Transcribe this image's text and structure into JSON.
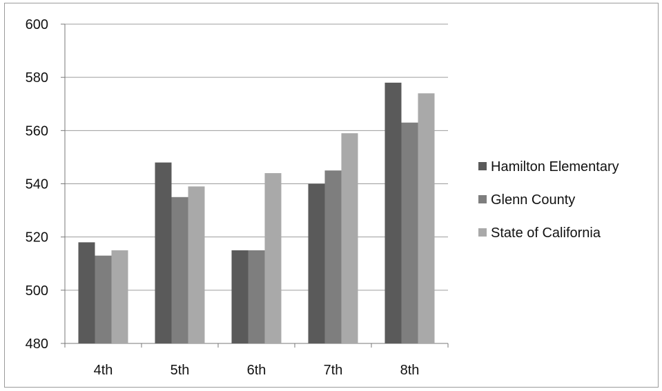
{
  "chart_data": {
    "type": "bar",
    "title": "",
    "xlabel": "",
    "ylabel": "",
    "categories": [
      "4th",
      "5th",
      "6th",
      "7th",
      "8th"
    ],
    "series": [
      {
        "name": "Hamilton Elementary",
        "color": "#5a5a5a",
        "values": [
          518,
          548,
          515,
          540,
          578
        ]
      },
      {
        "name": "Glenn County",
        "color": "#7e7e7e",
        "values": [
          513,
          535,
          515,
          545,
          563
        ]
      },
      {
        "name": "State of California",
        "color": "#a9a9a9",
        "values": [
          515,
          539,
          544,
          559,
          574
        ]
      }
    ],
    "ylim": [
      480,
      600
    ],
    "yticks": [
      480,
      500,
      520,
      540,
      560,
      580,
      600
    ],
    "grid": true,
    "legend_position": "right"
  }
}
